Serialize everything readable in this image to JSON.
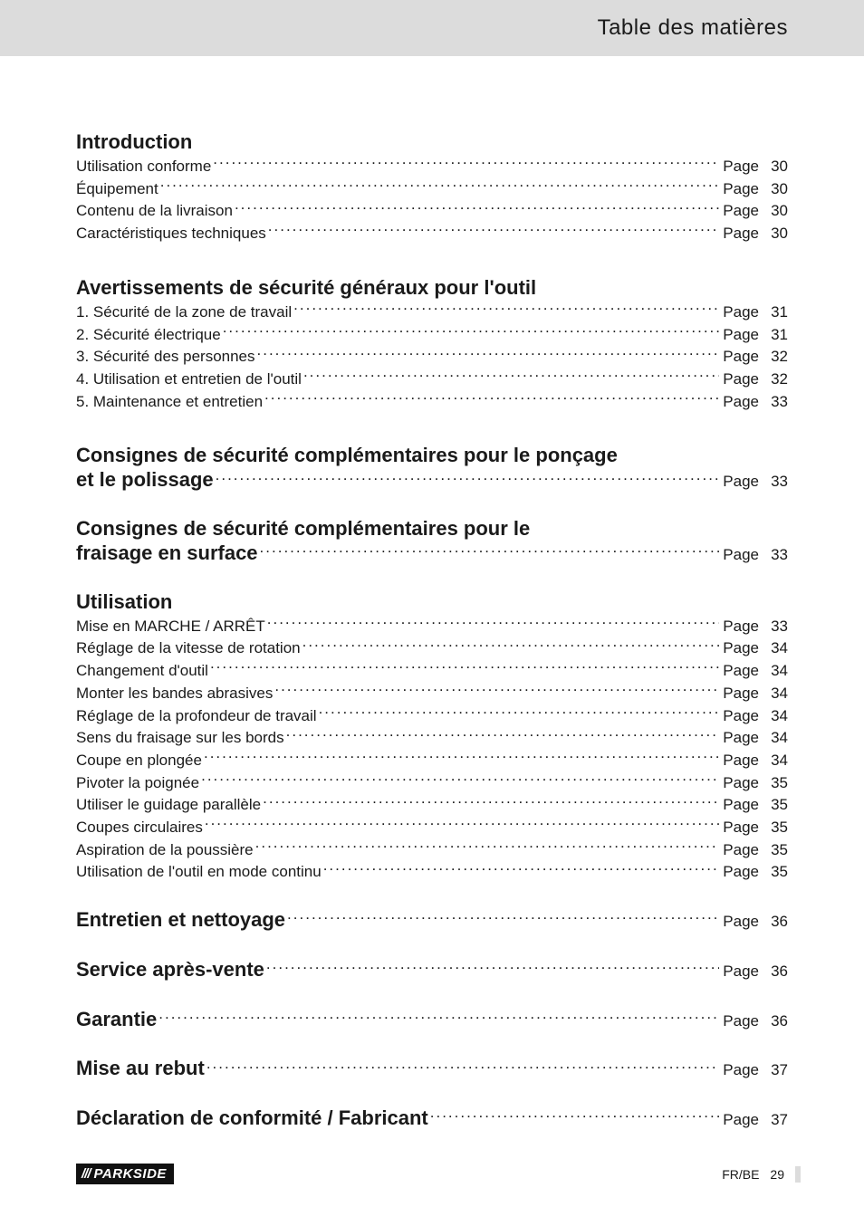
{
  "header": {
    "title": "Table des matières"
  },
  "page_word": "Page",
  "sections": [
    {
      "type": "title",
      "text": "Introduction",
      "first": true
    },
    {
      "type": "entry",
      "label": "Utilisation conforme",
      "page": "30"
    },
    {
      "type": "entry",
      "label": "Équipement",
      "page": "30"
    },
    {
      "type": "entry",
      "label": "Contenu de la livraison",
      "page": "30"
    },
    {
      "type": "entry",
      "label": "Caractéristiques techniques",
      "page": "30"
    },
    {
      "type": "gap",
      "size": "lg"
    },
    {
      "type": "title",
      "text": "Avertissements de sécurité généraux pour l'outil"
    },
    {
      "type": "entry",
      "label": "1. Sécurité de la zone de travail",
      "page": "31"
    },
    {
      "type": "entry",
      "label": "2. Sécurité électrique",
      "page": "31"
    },
    {
      "type": "entry",
      "label": "3. Sécurité des personnes",
      "page": "32"
    },
    {
      "type": "entry",
      "label": "4. Utilisation et entretien de l'outil",
      "page": "32"
    },
    {
      "type": "entry",
      "label": "5. Maintenance et entretien",
      "page": "33"
    },
    {
      "type": "gap",
      "size": "lg"
    },
    {
      "type": "title",
      "text": "Consignes de sécurité complémentaires pour le ponçage"
    },
    {
      "type": "inline",
      "title": "et le polissage",
      "page": "33"
    },
    {
      "type": "gap",
      "size": "md"
    },
    {
      "type": "title",
      "text": "Consignes de sécurité complémentaires pour le"
    },
    {
      "type": "inline",
      "title": "fraisage en surface",
      "page": "33"
    },
    {
      "type": "gap",
      "size": "md"
    },
    {
      "type": "title",
      "text": "Utilisation"
    },
    {
      "type": "entry",
      "label": "Mise en MARCHE / ARRÊT",
      "page": "33"
    },
    {
      "type": "entry",
      "label": "Réglage de la vitesse de rotation",
      "page": "34"
    },
    {
      "type": "entry",
      "label": "Changement d'outil",
      "page": "34"
    },
    {
      "type": "entry",
      "label": "Monter les bandes abrasives",
      "page": "34"
    },
    {
      "type": "entry",
      "label": "Réglage de la profondeur de travail",
      "page": "34"
    },
    {
      "type": "entry",
      "label": "Sens du fraisage sur les bords",
      "page": "34"
    },
    {
      "type": "entry",
      "label": "Coupe en plongée",
      "page": "34"
    },
    {
      "type": "entry",
      "label": "Pivoter la poignée",
      "page": "35"
    },
    {
      "type": "entry",
      "label": "Utiliser le guidage parallèle",
      "page": "35"
    },
    {
      "type": "entry",
      "label": "Coupes circulaires",
      "page": "35"
    },
    {
      "type": "entry",
      "label": "Aspiration de la poussière",
      "page": "35"
    },
    {
      "type": "entry",
      "label": "Utilisation de l'outil en mode continu",
      "page": "35"
    },
    {
      "type": "gap",
      "size": "lg"
    },
    {
      "type": "inline",
      "title": "Entretien et nettoyage",
      "page": "36"
    },
    {
      "type": "gap",
      "size": "lg"
    },
    {
      "type": "inline",
      "title": "Service après-vente",
      "page": "36"
    },
    {
      "type": "gap",
      "size": "lg"
    },
    {
      "type": "inline",
      "title": "Garantie",
      "page": "36"
    },
    {
      "type": "gap",
      "size": "lg"
    },
    {
      "type": "inline",
      "title": "Mise au rebut",
      "page": "37"
    },
    {
      "type": "gap",
      "size": "lg"
    },
    {
      "type": "inline",
      "title": "Déclaration de conformité / Fabricant",
      "page": "37"
    }
  ],
  "footer": {
    "brand": "PARKSIDE",
    "locale": "FR/BE",
    "page": "29"
  }
}
